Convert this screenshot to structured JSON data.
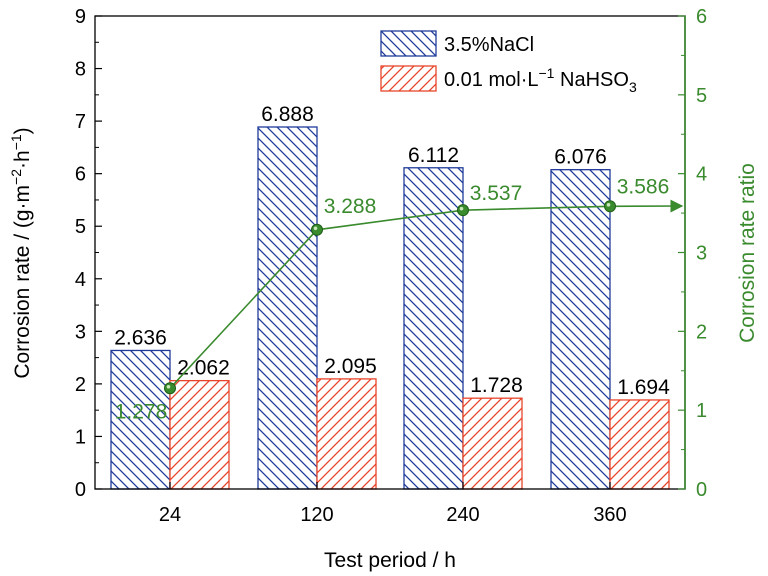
{
  "chart_data": {
    "type": "bar",
    "categories": [
      "24",
      "120",
      "240",
      "360"
    ],
    "series": [
      {
        "name": "3.5%NaCl",
        "values": [
          2.636,
          6.888,
          6.112,
          6.076
        ],
        "color": "#1f3b9a",
        "axis": "left"
      },
      {
        "name": "0.01 mol·L⁻¹ NaHSO₃",
        "values": [
          2.062,
          2.095,
          1.728,
          1.694
        ],
        "color": "#e8442a",
        "axis": "left"
      }
    ],
    "bar_labels": {
      "series0": [
        "2.636",
        "6.888",
        "6.112",
        "6.076"
      ],
      "series1": [
        "2.062",
        "2.095",
        "1.728",
        "1.694"
      ]
    },
    "line_series": {
      "name": "Corrosion rate ratio",
      "values": [
        1.278,
        3.288,
        3.537,
        3.586
      ],
      "labels": [
        "1.278",
        "3.288",
        "3.537",
        "3.586"
      ],
      "color": "#3a8a2e",
      "axis": "right"
    },
    "legend": {
      "entry0": {
        "text": "3.5%NaCl"
      },
      "entry1": {
        "prefix": "0.01 mol·L",
        "sup": "−1",
        "middle": " NaHSO",
        "sub": "3"
      },
      "placement": "top-right"
    },
    "xlabel": "Test period / h",
    "ylabel_left": {
      "prefix": "Corrosion rate / (g·m",
      "sup1": "−2",
      "middle": "·h",
      "sup2": "−1",
      "suffix": ")"
    },
    "ylabel_right": "Corrosion rate ratio",
    "ylim_left": [
      0,
      9
    ],
    "ylim_right": [
      0,
      6
    ],
    "yticks_left": [
      "0",
      "1",
      "2",
      "3",
      "4",
      "5",
      "6",
      "7",
      "8",
      "9"
    ],
    "yticks_right": [
      "0",
      "1",
      "2",
      "3",
      "4",
      "5",
      "6"
    ],
    "grid": false
  }
}
